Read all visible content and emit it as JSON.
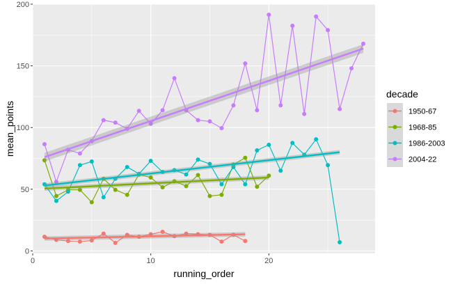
{
  "chart_data": {
    "type": "line",
    "xlabel": "running_order",
    "ylabel": "mean_points",
    "xlim": [
      0,
      29
    ],
    "ylim": [
      -2,
      200
    ],
    "x_ticks": [
      0,
      10,
      20
    ],
    "y_ticks": [
      0,
      50,
      100,
      150,
      200
    ],
    "x_tick_labels": [
      "0",
      "10",
      "20"
    ],
    "y_tick_labels": [
      "0",
      "50",
      "100",
      "150",
      "200"
    ],
    "grid": true,
    "panel_background": "#ebebeb",
    "legend": {
      "title": "decade",
      "position": "right"
    },
    "series": [
      {
        "name": "1950-67",
        "color": "#f8766d",
        "x": [
          1,
          2,
          3,
          4,
          5,
          6,
          7,
          8,
          9,
          10,
          11,
          12,
          13,
          14,
          15,
          16,
          17,
          18
        ],
        "y": [
          11.5,
          9,
          8,
          7.5,
          8.5,
          14,
          6.5,
          13,
          11.5,
          13.5,
          15.5,
          12,
          14,
          13.5,
          13,
          7.5,
          13,
          8
        ],
        "trend": [
          [
            1,
            10
          ],
          [
            18,
            13.5
          ]
        ]
      },
      {
        "name": "1968-85",
        "color": "#7cae00",
        "x": [
          1,
          2,
          3,
          4,
          5,
          6,
          7,
          8,
          9,
          10,
          11,
          12,
          13,
          14,
          15,
          16,
          17,
          18,
          19,
          20
        ],
        "y": [
          73.5,
          44.5,
          49.5,
          49.5,
          39.5,
          58.5,
          49.5,
          45.5,
          62,
          59.5,
          51.5,
          56.5,
          52.5,
          61.5,
          44.5,
          45.5,
          70,
          75.5,
          52,
          61
        ],
        "trend": [
          [
            1,
            50.5
          ],
          [
            20,
            59.5
          ]
        ]
      },
      {
        "name": "1986-2003",
        "color": "#00bfc4",
        "x": [
          1,
          2,
          3,
          4,
          5,
          6,
          7,
          8,
          9,
          10,
          11,
          12,
          13,
          14,
          15,
          16,
          17,
          18,
          19,
          20,
          21,
          22,
          23,
          24,
          25,
          26
        ],
        "y": [
          54,
          40.5,
          48,
          69.5,
          72.5,
          43.5,
          58.5,
          68,
          62.5,
          73,
          64,
          65.5,
          62,
          74,
          70.5,
          54,
          68,
          54,
          81.5,
          86,
          65,
          87.5,
          78,
          90.5,
          69.5,
          7
        ],
        "trend": [
          [
            1,
            53
          ],
          [
            26,
            80
          ]
        ]
      },
      {
        "name": "2004-22",
        "color": "#c77cff",
        "x": [
          1,
          2,
          3,
          4,
          5,
          6,
          7,
          8,
          9,
          10,
          11,
          12,
          13,
          14,
          15,
          16,
          17,
          18,
          19,
          20,
          21,
          22,
          23,
          24,
          25,
          26,
          27,
          28
        ],
        "y": [
          86.5,
          56,
          82,
          79,
          89,
          106,
          104,
          99,
          113.5,
          103,
          114,
          140,
          114,
          106,
          105,
          99.5,
          118,
          152,
          114,
          191.5,
          118,
          182.5,
          111,
          190,
          179,
          115,
          148,
          168
        ],
        "trend": [
          [
            1,
            76
          ],
          [
            28,
            164
          ]
        ]
      }
    ]
  }
}
